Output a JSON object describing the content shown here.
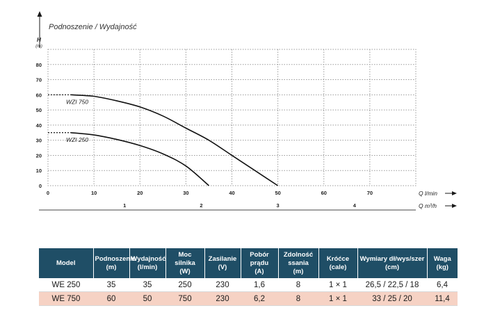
{
  "chart_data": {
    "type": "line",
    "title": "Podnoszenie / Wydajność",
    "ylabel": "H",
    "yunit": "(m)",
    "xlabel": "Q l/min",
    "x2label": "Q m³/h",
    "xlim": [
      0,
      80
    ],
    "ylim": [
      0,
      90
    ],
    "xticks": [
      0,
      10,
      20,
      30,
      40,
      50,
      60,
      70
    ],
    "yticks": [
      0,
      10,
      20,
      30,
      40,
      50,
      60,
      70,
      80
    ],
    "x2ticks": [
      1,
      2,
      3,
      4
    ],
    "grid": true,
    "series": [
      {
        "name": "WZI 750",
        "x": [
          0,
          5,
          10,
          15,
          20,
          25,
          30,
          35,
          40,
          45,
          50
        ],
        "y": [
          60,
          60,
          59,
          56,
          52,
          46,
          38,
          30,
          20,
          10,
          0
        ]
      },
      {
        "name": "WZI 250",
        "x": [
          0,
          5,
          10,
          15,
          20,
          25,
          30,
          35
        ],
        "y": [
          35,
          35,
          33.5,
          30.5,
          26.5,
          21,
          13,
          0
        ]
      }
    ]
  },
  "table": {
    "headers": [
      [
        "Model"
      ],
      [
        "Podnoszenie",
        "(m)"
      ],
      [
        "Wydajność",
        "(l/min)"
      ],
      [
        "Moc silnika",
        "(W)"
      ],
      [
        "Zasilanie",
        "(V)"
      ],
      [
        "Pobór prądu",
        "(A)"
      ],
      [
        "Zdolność ssania",
        "(m)"
      ],
      [
        "Króćce",
        "(cale)"
      ],
      [
        "Wymiary dł/wys/szer",
        "(cm)"
      ],
      [
        "Waga",
        "(kg)"
      ]
    ],
    "rows": [
      [
        "WE 250",
        "35",
        "35",
        "250",
        "230",
        "1,6",
        "8",
        "1 × 1",
        "26,5 / 22,5 / 18",
        "6,4"
      ],
      [
        "WE 750",
        "60",
        "50",
        "750",
        "230",
        "6,2",
        "8",
        "1 × 1",
        "33 / 25 / 20",
        "11,4"
      ]
    ],
    "header_color": "#1f4e66",
    "highlight_row_color": "#f6d2c4"
  }
}
